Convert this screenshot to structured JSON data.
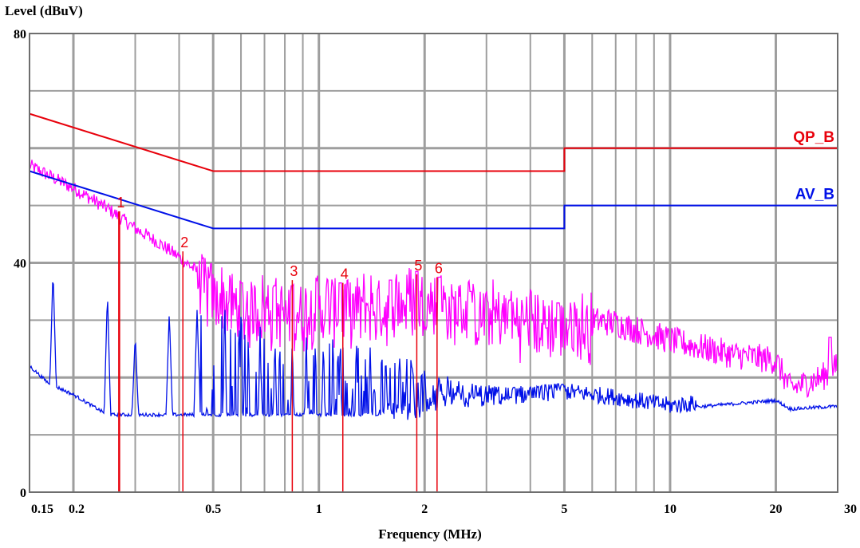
{
  "chart_data": {
    "type": "line",
    "ylabel": "Level (dBuV)",
    "xlabel": "Frequency (MHz)",
    "x_scale": "log",
    "xlim": [
      0.15,
      30
    ],
    "ylim": [
      0,
      80
    ],
    "grid": true,
    "x_ticks": [
      {
        "value": 0.15,
        "label": "0.15"
      },
      {
        "value": 0.2,
        "label": "0.2"
      },
      {
        "value": 0.5,
        "label": "0.5"
      },
      {
        "value": 1,
        "label": "1"
      },
      {
        "value": 2,
        "label": "2"
      },
      {
        "value": 5,
        "label": "5"
      },
      {
        "value": 10,
        "label": "10"
      },
      {
        "value": 20,
        "label": "20"
      },
      {
        "value": 30,
        "label": "30"
      }
    ],
    "y_ticks": [
      {
        "value": 0,
        "label": "0"
      },
      {
        "value": 40,
        "label": "40"
      },
      {
        "value": 80,
        "label": "80"
      }
    ],
    "limits": [
      {
        "name": "QP_B",
        "color": "#e8000b",
        "points": [
          [
            0.15,
            66
          ],
          [
            0.5,
            56
          ],
          [
            5,
            56
          ],
          [
            5,
            60
          ],
          [
            30,
            60
          ]
        ]
      },
      {
        "name": "AV_B",
        "color": "#0010e8",
        "points": [
          [
            0.15,
            56
          ],
          [
            0.5,
            46
          ],
          [
            5,
            46
          ],
          [
            5,
            50
          ],
          [
            30,
            50
          ]
        ]
      }
    ],
    "series": [
      {
        "color": "#ff00ff",
        "envelope": [
          [
            0.15,
            57
          ],
          [
            0.2,
            53
          ],
          [
            0.25,
            49.5
          ],
          [
            0.3,
            46
          ],
          [
            0.35,
            43.5
          ],
          [
            0.4,
            41
          ],
          [
            0.45,
            38.5
          ],
          [
            0.5,
            35.5
          ],
          [
            0.6,
            33.5
          ],
          [
            0.8,
            32.5
          ],
          [
            1.0,
            33.5
          ],
          [
            1.5,
            34
          ],
          [
            2.0,
            34.5
          ],
          [
            2.5,
            33
          ],
          [
            3.5,
            31.5
          ],
          [
            5.0,
            30.5
          ],
          [
            7.0,
            29.5
          ],
          [
            10.0,
            26.5
          ],
          [
            15.0,
            24
          ],
          [
            20.0,
            23
          ],
          [
            22.0,
            18
          ],
          [
            27.0,
            20
          ],
          [
            30.0,
            22
          ]
        ],
        "peaks": [
          [
            0.6,
            36.5
          ],
          [
            0.75,
            36
          ],
          [
            0.84,
            36
          ],
          [
            1.15,
            36.5
          ],
          [
            1.6,
            37
          ],
          [
            1.9,
            38.5
          ],
          [
            2.2,
            37.5
          ],
          [
            2.7,
            35
          ],
          [
            3.5,
            33.5
          ],
          [
            4.8,
            33
          ],
          [
            7.0,
            30
          ],
          [
            28.5,
            27
          ]
        ]
      },
      {
        "color": "#0010e8",
        "baseline": [
          [
            0.15,
            22
          ],
          [
            0.17,
            19
          ],
          [
            0.2,
            17
          ],
          [
            0.25,
            13.5
          ],
          [
            1.0,
            13.5
          ],
          [
            1.9,
            13.5
          ],
          [
            2.2,
            15
          ],
          [
            5.0,
            17
          ],
          [
            7.0,
            16
          ],
          [
            10.0,
            14.5
          ],
          [
            20.0,
            16
          ],
          [
            22.0,
            14.5
          ],
          [
            30.0,
            15
          ]
        ],
        "peaks": [
          [
            0.175,
            39
          ],
          [
            0.25,
            35
          ],
          [
            0.3,
            27.5
          ],
          [
            0.375,
            31.5
          ],
          [
            0.45,
            32
          ],
          [
            0.54,
            32
          ],
          [
            0.6,
            31
          ],
          [
            0.68,
            29
          ],
          [
            0.75,
            27
          ],
          [
            0.84,
            26.5
          ],
          [
            0.92,
            27
          ],
          [
            1.03,
            27
          ],
          [
            1.15,
            26.5
          ],
          [
            1.28,
            26
          ],
          [
            1.4,
            25.5
          ],
          [
            1.55,
            25
          ],
          [
            1.7,
            24
          ],
          [
            1.85,
            23
          ],
          [
            2.0,
            22
          ],
          [
            2.2,
            21
          ],
          [
            2.5,
            19.5
          ],
          [
            2.8,
            19
          ],
          [
            3.2,
            18.5
          ],
          [
            3.6,
            18.5
          ],
          [
            4.0,
            18.5
          ],
          [
            4.9,
            19
          ]
        ]
      }
    ],
    "markers": [
      {
        "label": "1",
        "freq": 0.27,
        "level": 49
      },
      {
        "label": "2",
        "freq": 0.41,
        "level": 42
      },
      {
        "label": "3",
        "freq": 0.84,
        "level": 37
      },
      {
        "label": "4",
        "freq": 1.17,
        "level": 36.5
      },
      {
        "label": "5",
        "freq": 1.9,
        "level": 38
      },
      {
        "label": "6",
        "freq": 2.17,
        "level": 37.5
      }
    ],
    "colors": {
      "qp_limit": "#e8000b",
      "av_limit": "#0010e8",
      "qp_trace": "#ff00ff",
      "av_trace": "#0010e8",
      "marker": "#e8000b",
      "grid": "#9e9e9e"
    }
  }
}
